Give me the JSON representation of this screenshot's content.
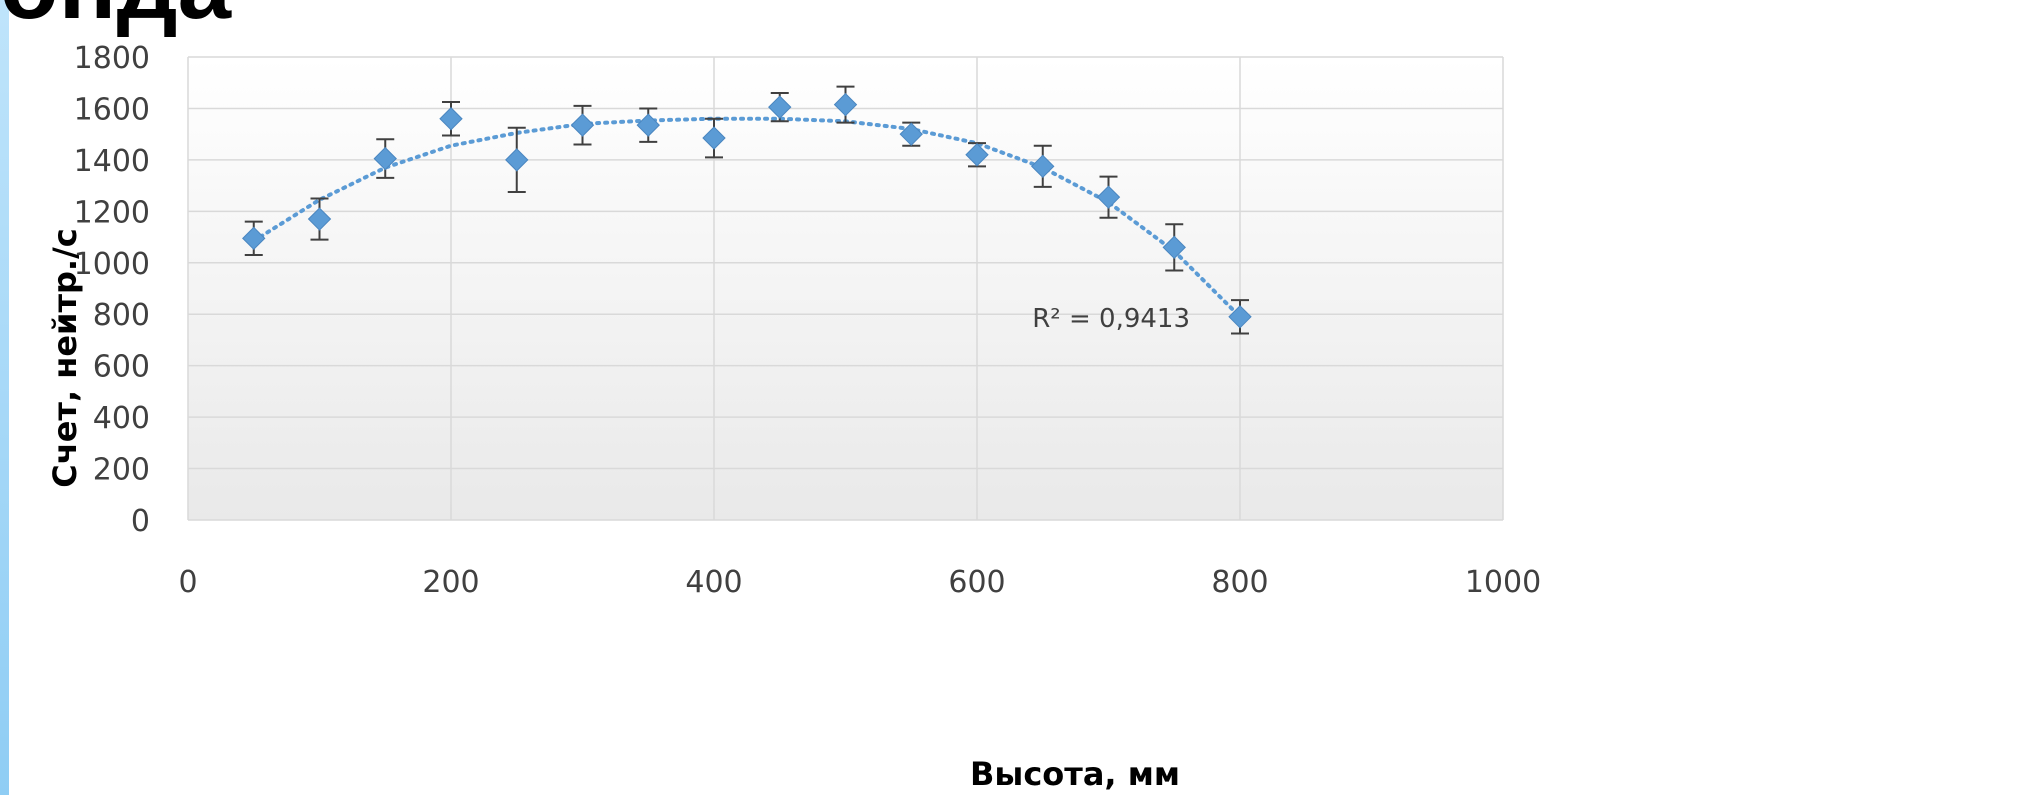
{
  "slide": {
    "title_fragment": "онда"
  },
  "chart_data": {
    "type": "scatter",
    "title": "",
    "xlabel": "Высота, мм",
    "ylabel": "Счет, нейтр./с",
    "xlim": [
      0,
      1000
    ],
    "ylim": [
      0,
      1800
    ],
    "x_ticks": [
      0,
      200,
      400,
      600,
      800,
      1000
    ],
    "y_ticks": [
      0,
      200,
      400,
      600,
      800,
      1000,
      1200,
      1400,
      1600,
      1800
    ],
    "grid": "vertical and horizontal",
    "legend": "none",
    "series": [
      {
        "marker": "diamond",
        "color": "#5b9bd5",
        "x": [
          50,
          100,
          150,
          200,
          250,
          300,
          350,
          400,
          450,
          500,
          550,
          600,
          650,
          700,
          750,
          800
        ],
        "y": [
          1095,
          1170,
          1405,
          1560,
          1400,
          1535,
          1535,
          1485,
          1605,
          1615,
          1500,
          1420,
          1375,
          1255,
          1060,
          790
        ],
        "error": [
          65,
          80,
          75,
          65,
          125,
          75,
          65,
          75,
          55,
          70,
          45,
          45,
          80,
          80,
          90,
          65
        ]
      }
    ],
    "trendline": {
      "style": "dotted",
      "color": "#5b9bd5",
      "x": [
        50,
        100,
        150,
        200,
        250,
        300,
        350,
        400,
        450,
        500,
        550,
        600,
        650,
        700,
        750,
        800
      ],
      "y": [
        1085,
        1245,
        1370,
        1455,
        1505,
        1540,
        1553,
        1560,
        1560,
        1550,
        1520,
        1465,
        1370,
        1235,
        1045,
        790
      ]
    },
    "annotation": {
      "text": "R² = 0,9413",
      "x": 800,
      "y": 790
    }
  }
}
